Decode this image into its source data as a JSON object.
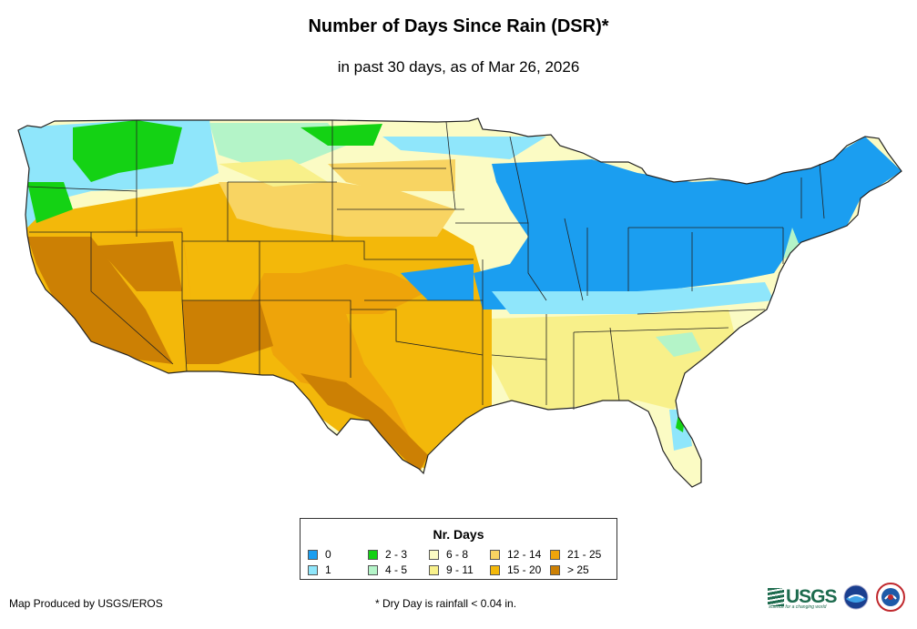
{
  "header": {
    "title": "Number of Days Since Rain (DSR)*",
    "subtitle": "in past 30 days, as of Mar 26, 2026"
  },
  "legend": {
    "title": "Nr. Days",
    "items": [
      {
        "label": "0",
        "color": "#1b9ef0"
      },
      {
        "label": "1",
        "color": "#8fe6fb"
      },
      {
        "label": "2 - 3",
        "color": "#14d214"
      },
      {
        "label": "4 - 5",
        "color": "#b4f4c8"
      },
      {
        "label": "6 - 8",
        "color": "#fbfbc4"
      },
      {
        "label": "9 - 11",
        "color": "#f8f08a"
      },
      {
        "label": "12 - 14",
        "color": "#f8d462"
      },
      {
        "label": "15 - 20",
        "color": "#f3b80a"
      },
      {
        "label": "21 - 25",
        "color": "#eea40a"
      },
      {
        "label": "> 25",
        "color": "#cc8004"
      }
    ]
  },
  "footer": {
    "credit": "Map Produced by USGS/EROS",
    "footnote": "* Dry Day is rainfall < 0.04 in."
  },
  "logos": {
    "usgs": "USGS",
    "usgs_tagline": "science for a changing world",
    "noaa_icon": "noaa-icon",
    "nws_icon": "nws-icon"
  }
}
